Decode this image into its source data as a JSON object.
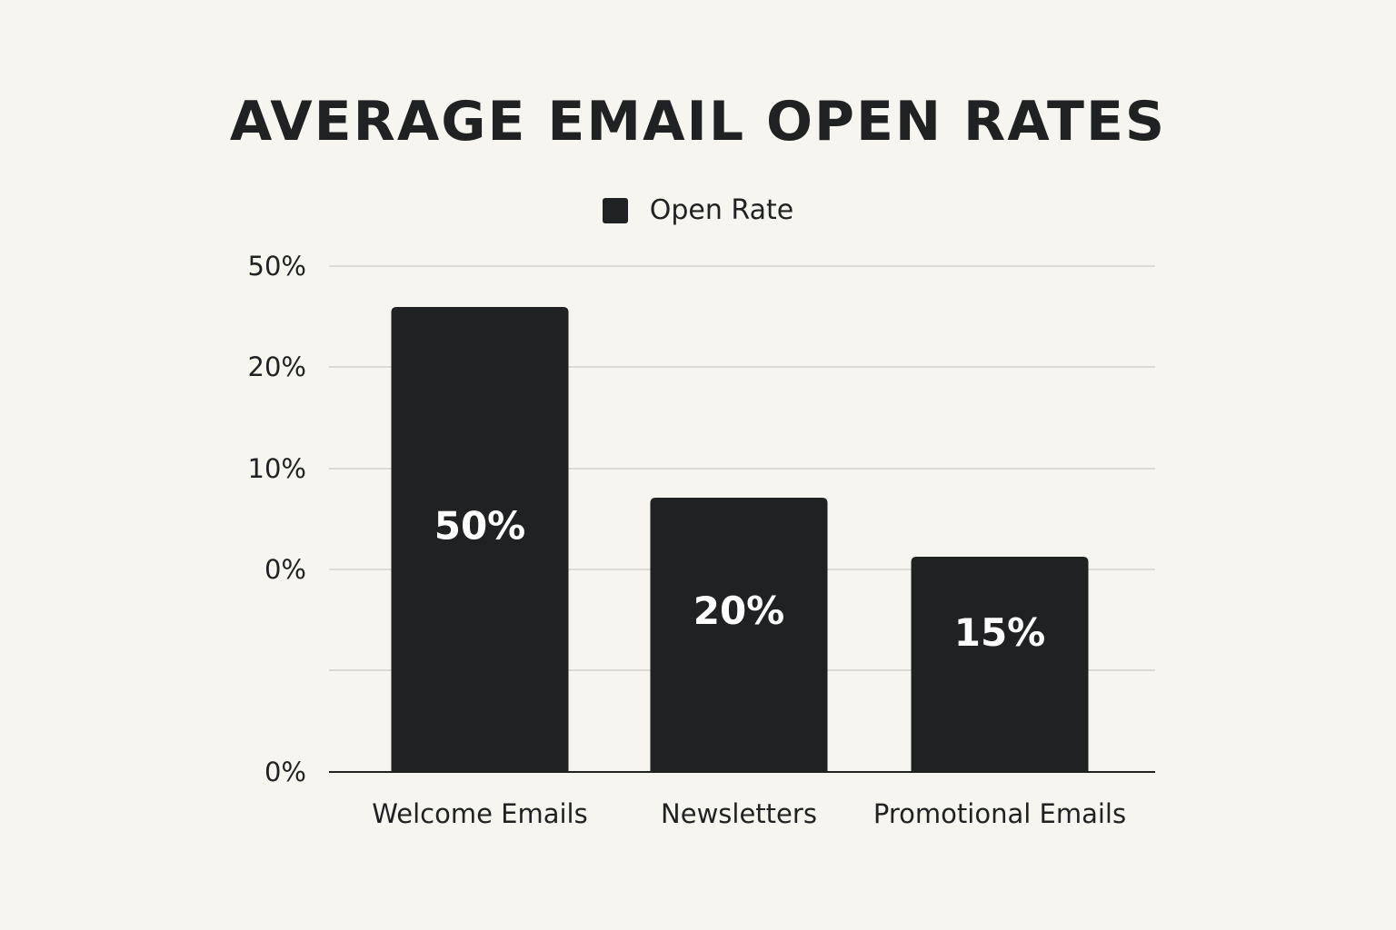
{
  "colors": {
    "background": "#f7f5f0",
    "bar": "#1f2122",
    "grid": "#d4d2cc",
    "axis": "#1f2122",
    "text": "#1f2122",
    "bar_label": "#ffffff"
  },
  "chart_data": {
    "type": "bar",
    "title": "AVERAGE EMAIL OPEN RATES",
    "xlabel": "",
    "ylabel": "",
    "categories": [
      "Welcome Emails",
      "Newsletters",
      "Promotional Emails"
    ],
    "series": [
      {
        "name": "Open Rate",
        "values": [
          50,
          20,
          15
        ],
        "value_labels": [
          "50%",
          "20%",
          "15%"
        ]
      }
    ],
    "y_tick_labels": [
      "0%",
      "",
      "0%",
      "10%",
      "20%",
      "50%"
    ],
    "grid": true,
    "legend": "top-center"
  }
}
